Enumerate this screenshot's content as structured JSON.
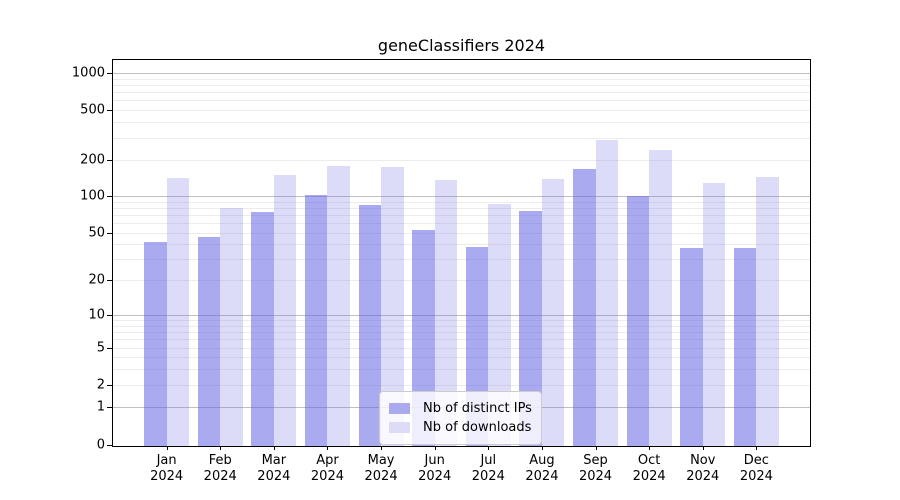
{
  "title": "geneClassifiers 2024",
  "chart_data": {
    "type": "bar",
    "title": "geneClassifiers 2024",
    "categories": [
      "Jan",
      "Feb",
      "Mar",
      "Apr",
      "May",
      "Jun",
      "Jul",
      "Aug",
      "Sep",
      "Oct",
      "Nov",
      "Dec"
    ],
    "x_tick_year": "2024",
    "series": [
      {
        "name": "Nb of distinct IPs",
        "color": "#aaaaf0",
        "fill": "rgba(100,100,228,0.55)",
        "values": [
          43,
          47,
          76,
          104,
          86,
          54,
          39,
          77,
          170,
          102,
          38,
          38
        ]
      },
      {
        "name": "Nb of downloads",
        "color": "#dcdcf8",
        "fill": "rgba(115,115,227,0.25)",
        "values": [
          145,
          82,
          152,
          180,
          178,
          138,
          87,
          141,
          293,
          245,
          132,
          147
        ]
      }
    ],
    "yscale": "symlog",
    "y_ticks": [
      0,
      1,
      2,
      5,
      10,
      20,
      50,
      100,
      200,
      500,
      1000
    ],
    "ylim": [
      0,
      1300
    ],
    "grid": "on",
    "minor_grid_values": [
      3,
      4,
      6,
      7,
      8,
      9,
      30,
      40,
      60,
      70,
      80,
      90,
      300,
      400,
      600,
      700,
      800,
      900
    ],
    "legend_position": "lower center"
  },
  "colors": {
    "grid_major": "#bfbfbf",
    "grid_minor": "#ececec",
    "spine": "#000000",
    "background": "#ffffff"
  }
}
